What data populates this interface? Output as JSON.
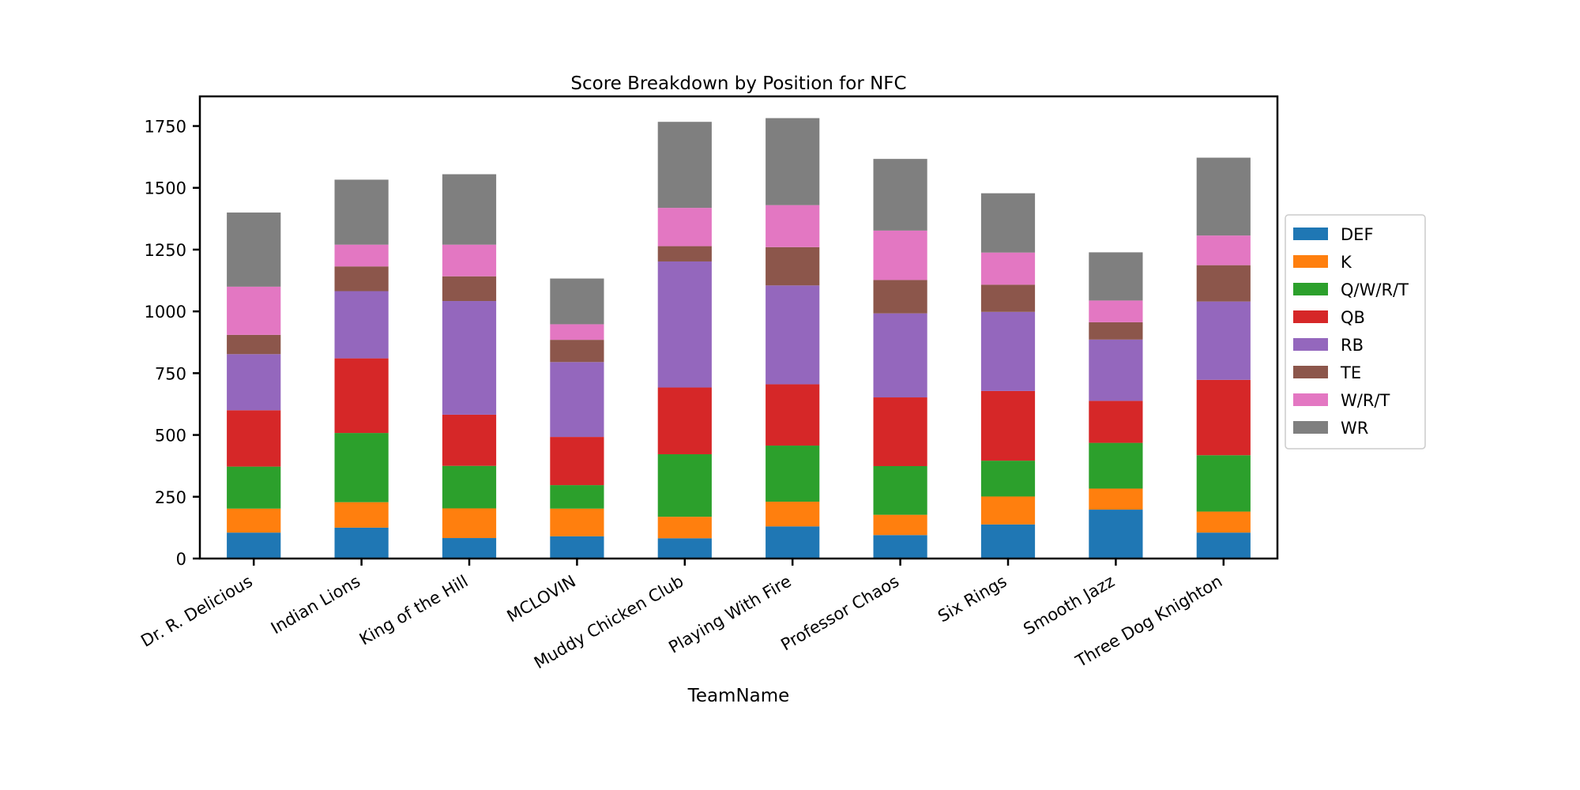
{
  "chart_data": {
    "type": "bar",
    "stacked": true,
    "title": "Score Breakdown by Position for NFC",
    "xlabel": "TeamName",
    "ylabel": "",
    "ylim": [
      0,
      1870
    ],
    "yticks": [
      0,
      250,
      500,
      750,
      1000,
      1250,
      1500,
      1750
    ],
    "grid": false,
    "legend_position": "right-center",
    "categories": [
      "Dr. R. Delicious",
      "Indian Lions",
      "King of the Hill",
      "MCLOVIN",
      "Muddy Chicken Club",
      "Playing With Fire",
      "Professor Chaos",
      "Six Rings",
      "Smooth Jazz",
      "Three Dog Knighton"
    ],
    "series": [
      {
        "name": "DEF",
        "color": "#1f77b4",
        "values": [
          105,
          125,
          83,
          90,
          82,
          130,
          95,
          138,
          198,
          105
        ]
      },
      {
        "name": "K",
        "color": "#ff7f0e",
        "values": [
          97,
          103,
          120,
          112,
          87,
          100,
          82,
          113,
          85,
          85
        ]
      },
      {
        "name": "Q/W/R/T",
        "color": "#2ca02c",
        "values": [
          170,
          280,
          172,
          95,
          253,
          227,
          197,
          145,
          185,
          228
        ]
      },
      {
        "name": "QB",
        "color": "#d62728",
        "values": [
          228,
          302,
          207,
          195,
          270,
          248,
          278,
          282,
          170,
          305
        ]
      },
      {
        "name": "RB",
        "color": "#9467bd",
        "values": [
          227,
          272,
          460,
          303,
          510,
          400,
          340,
          320,
          248,
          317
        ]
      },
      {
        "name": "TE",
        "color": "#8c564b",
        "values": [
          78,
          100,
          100,
          90,
          62,
          155,
          135,
          110,
          70,
          147
        ]
      },
      {
        "name": "W/R/T",
        "color": "#e377c2",
        "values": [
          195,
          88,
          128,
          63,
          155,
          170,
          200,
          130,
          88,
          120
        ]
      },
      {
        "name": "WR",
        "color": "#7f7f7f",
        "values": [
          300,
          263,
          285,
          185,
          348,
          352,
          290,
          240,
          195,
          315
        ]
      }
    ]
  }
}
